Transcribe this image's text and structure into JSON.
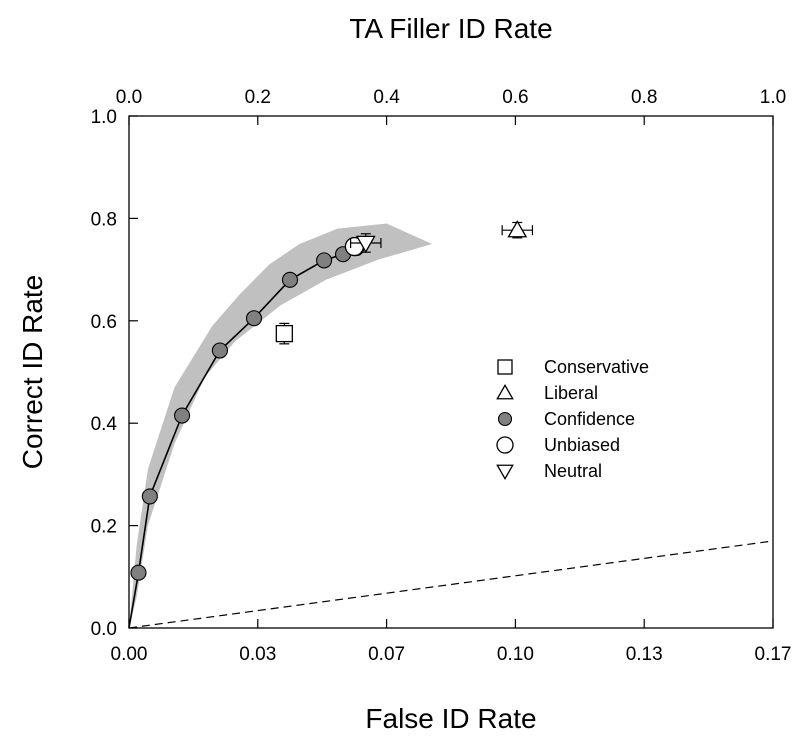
{
  "chart_data": {
    "type": "scatter",
    "top_axis": {
      "label": "TA Filler ID Rate",
      "range": [
        0,
        1.0
      ],
      "ticks": [
        {
          "value": 0.0,
          "label": "0.0"
        },
        {
          "value": 0.2,
          "label": "0.2"
        },
        {
          "value": 0.4,
          "label": "0.4"
        },
        {
          "value": 0.6,
          "label": "0.6"
        },
        {
          "value": 0.8,
          "label": "0.8"
        },
        {
          "value": 1.0,
          "label": "1.0"
        }
      ]
    },
    "x_axis": {
      "label": "False ID Rate",
      "range": [
        0,
        0.17
      ],
      "ticks": [
        {
          "value": 0.0,
          "label": "0.00"
        },
        {
          "value": 0.034,
          "label": "0.03"
        },
        {
          "value": 0.068,
          "label": "0.07"
        },
        {
          "value": 0.102,
          "label": "0.10"
        },
        {
          "value": 0.136,
          "label": "0.13"
        },
        {
          "value": 0.17,
          "label": "0.17"
        }
      ]
    },
    "y_axis": {
      "label": "Correct ID Rate",
      "range": [
        0,
        1.0
      ],
      "ticks": [
        {
          "value": 0.0,
          "label": "0.0"
        },
        {
          "value": 0.2,
          "label": "0.2"
        },
        {
          "value": 0.4,
          "label": "0.4"
        },
        {
          "value": 0.6,
          "label": "0.6"
        },
        {
          "value": 0.8,
          "label": "0.8"
        },
        {
          "value": 1.0,
          "label": "1.0"
        }
      ]
    },
    "confidence_band": {
      "upper": [
        [
          0.0,
          0.0
        ],
        [
          0.002,
          0.16
        ],
        [
          0.005,
          0.31
        ],
        [
          0.012,
          0.47
        ],
        [
          0.022,
          0.59
        ],
        [
          0.029,
          0.65
        ],
        [
          0.037,
          0.71
        ],
        [
          0.045,
          0.75
        ],
        [
          0.055,
          0.78
        ],
        [
          0.068,
          0.79
        ],
        [
          0.08,
          0.75
        ]
      ],
      "lower": [
        [
          0.08,
          0.75
        ],
        [
          0.066,
          0.72
        ],
        [
          0.052,
          0.68
        ],
        [
          0.04,
          0.63
        ],
        [
          0.028,
          0.56
        ],
        [
          0.02,
          0.49
        ],
        [
          0.012,
          0.36
        ],
        [
          0.005,
          0.2
        ],
        [
          0.002,
          0.06
        ],
        [
          0.0,
          0.0
        ]
      ],
      "color": "#c0c0c0"
    },
    "series": [
      {
        "name": "Conservative",
        "marker": "square",
        "points": [
          {
            "x": 0.041,
            "y": 0.575,
            "xerr": 0.002,
            "yerr": 0.02
          }
        ]
      },
      {
        "name": "Liberal",
        "marker": "triangle-up",
        "points": [
          {
            "x": 0.1025,
            "y": 0.777,
            "xerr": 0.004,
            "yerr": 0.015
          }
        ]
      },
      {
        "name": "Confidence",
        "marker": "filled-circle",
        "color": "#808080",
        "line": true,
        "points": [
          {
            "x": 0.0,
            "y": 0.0
          },
          {
            "x": 0.0025,
            "y": 0.108
          },
          {
            "x": 0.0055,
            "y": 0.257
          },
          {
            "x": 0.014,
            "y": 0.415
          },
          {
            "x": 0.024,
            "y": 0.542
          },
          {
            "x": 0.033,
            "y": 0.605
          },
          {
            "x": 0.0425,
            "y": 0.68
          },
          {
            "x": 0.0515,
            "y": 0.718
          },
          {
            "x": 0.0565,
            "y": 0.73
          },
          {
            "x": 0.06,
            "y": 0.742
          }
        ]
      },
      {
        "name": "Unbiased",
        "marker": "open-circle",
        "points": [
          {
            "x": 0.0595,
            "y": 0.745
          }
        ]
      },
      {
        "name": "Neutral",
        "marker": "triangle-down",
        "points": [
          {
            "x": 0.0625,
            "y": 0.752,
            "xerr": 0.004,
            "yerr": 0.018
          }
        ]
      }
    ],
    "chance_line": {
      "style": "dashed",
      "points": [
        [
          0,
          0
        ],
        [
          0.17,
          0.17
        ]
      ]
    },
    "legend": {
      "placement": "center-right"
    },
    "grid": false
  }
}
